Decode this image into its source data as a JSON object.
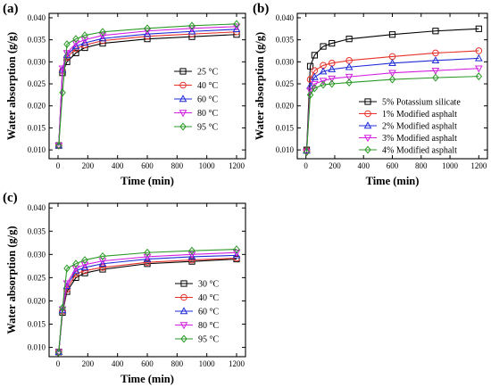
{
  "chart_data": [
    {
      "panel": "(a)",
      "type": "line",
      "xlabel": "Time (min)",
      "ylabel": "Water absorption (g/g)",
      "xlim": [
        -60,
        1260
      ],
      "ylim": [
        0.008,
        0.041
      ],
      "xticks": [
        0,
        200,
        400,
        600,
        800,
        1000,
        1200
      ],
      "yticks": [
        0.01,
        0.015,
        0.02,
        0.025,
        0.03,
        0.035,
        0.04
      ],
      "xticklabels": [
        "0",
        "200",
        "400",
        "600",
        "800",
        "1000",
        "1200"
      ],
      "yticklabels": [
        "0.010",
        "0.015",
        "0.020",
        "0.025",
        "0.030",
        "0.035",
        "0.040"
      ],
      "legend_position": "middle-right",
      "x": [
        5,
        30,
        60,
        120,
        180,
        300,
        600,
        900,
        1200
      ],
      "series": [
        {
          "name": "25 °C",
          "color": "#000000",
          "marker": "square",
          "values": [
            0.011,
            0.0275,
            0.03,
            0.032,
            0.0332,
            0.0342,
            0.0352,
            0.0357,
            0.0362
          ]
        },
        {
          "name": "40 °C",
          "color": "#e8312a",
          "marker": "circle",
          "values": [
            0.011,
            0.028,
            0.031,
            0.033,
            0.0338,
            0.0348,
            0.0358,
            0.0363,
            0.0368
          ]
        },
        {
          "name": "60 °C",
          "color": "#1f2bd6",
          "marker": "triangle-up",
          "values": [
            0.011,
            0.0282,
            0.0315,
            0.0335,
            0.0343,
            0.0353,
            0.0363,
            0.0369,
            0.0374
          ]
        },
        {
          "name": "80 °C",
          "color": "#d21fe0",
          "marker": "triangle-down",
          "values": [
            0.011,
            0.0285,
            0.032,
            0.0342,
            0.035,
            0.036,
            0.037,
            0.0376,
            0.038
          ]
        },
        {
          "name": "95 °C",
          "color": "#2b9a27",
          "marker": "diamond",
          "values": [
            0.011,
            0.023,
            0.034,
            0.0352,
            0.036,
            0.0368,
            0.0376,
            0.0382,
            0.0386
          ]
        }
      ]
    },
    {
      "panel": "(b)",
      "type": "line",
      "xlabel": "Time (min)",
      "ylabel": "Water absorption (g/g)",
      "xlim": [
        -60,
        1260
      ],
      "ylim": [
        0.008,
        0.041
      ],
      "xticks": [
        0,
        200,
        400,
        600,
        800,
        1000,
        1200
      ],
      "yticks": [
        0.01,
        0.015,
        0.02,
        0.025,
        0.03,
        0.035,
        0.04
      ],
      "xticklabels": [
        "0",
        "200",
        "400",
        "600",
        "800",
        "1000",
        "1200"
      ],
      "yticklabels": [
        "0.010",
        "0.015",
        "0.020",
        "0.025",
        "0.030",
        "0.035",
        "0.040"
      ],
      "legend_position": "bottom-right",
      "x": [
        5,
        30,
        60,
        120,
        180,
        300,
        600,
        900,
        1200
      ],
      "series": [
        {
          "name": "5% Potassium silicate",
          "color": "#000000",
          "marker": "square",
          "values": [
            0.01,
            0.029,
            0.0315,
            0.0335,
            0.0342,
            0.0352,
            0.0362,
            0.037,
            0.0375
          ]
        },
        {
          "name": "1% Modified asphalt",
          "color": "#e8312a",
          "marker": "circle",
          "values": [
            0.0098,
            0.026,
            0.028,
            0.0292,
            0.0297,
            0.0303,
            0.0312,
            0.032,
            0.0325
          ]
        },
        {
          "name": "2% Modified asphalt",
          "color": "#1f2bd6",
          "marker": "triangle-up",
          "values": [
            0.0098,
            0.0245,
            0.0265,
            0.0278,
            0.0283,
            0.0288,
            0.0297,
            0.0303,
            0.0308
          ]
        },
        {
          "name": "3% Modified asphalt",
          "color": "#d21fe0",
          "marker": "triangle-down",
          "values": [
            0.0095,
            0.0235,
            0.025,
            0.0257,
            0.0262,
            0.0266,
            0.0275,
            0.028,
            0.0285
          ]
        },
        {
          "name": "4% Modified asphalt",
          "color": "#2b9a27",
          "marker": "diamond",
          "values": [
            0.0095,
            0.0225,
            0.024,
            0.0248,
            0.025,
            0.0253,
            0.026,
            0.0264,
            0.0267
          ]
        }
      ]
    },
    {
      "panel": "(c)",
      "type": "line",
      "xlabel": "Time (min)",
      "ylabel": "Water absorption (g/g)",
      "xlim": [
        -60,
        1260
      ],
      "ylim": [
        0.008,
        0.041
      ],
      "xticks": [
        0,
        200,
        400,
        600,
        800,
        1000,
        1200
      ],
      "yticks": [
        0.01,
        0.015,
        0.02,
        0.025,
        0.03,
        0.035,
        0.04
      ],
      "xticklabels": [
        "0",
        "200",
        "400",
        "600",
        "800",
        "1000",
        "1200"
      ],
      "yticklabels": [
        "0.010",
        "0.015",
        "0.020",
        "0.025",
        "0.030",
        "0.035",
        "0.040"
      ],
      "legend_position": "bottom-right",
      "x": [
        5,
        30,
        60,
        120,
        180,
        300,
        600,
        900,
        1200
      ],
      "series": [
        {
          "name": "30 °C",
          "color": "#000000",
          "marker": "square",
          "values": [
            0.009,
            0.0175,
            0.022,
            0.025,
            0.026,
            0.0268,
            0.028,
            0.0285,
            0.029
          ]
        },
        {
          "name": "40 °C",
          "color": "#e8312a",
          "marker": "circle",
          "values": [
            0.009,
            0.0178,
            0.0225,
            0.0258,
            0.0265,
            0.0272,
            0.0283,
            0.0288,
            0.0292
          ]
        },
        {
          "name": "60 °C",
          "color": "#1f2bd6",
          "marker": "triangle-up",
          "values": [
            0.009,
            0.018,
            0.0232,
            0.0265,
            0.0272,
            0.028,
            0.029,
            0.0295,
            0.0298
          ]
        },
        {
          "name": "80 °C",
          "color": "#d21fe0",
          "marker": "triangle-down",
          "values": [
            0.009,
            0.0182,
            0.0238,
            0.027,
            0.0278,
            0.0286,
            0.0295,
            0.03,
            0.0304
          ]
        },
        {
          "name": "95 °C",
          "color": "#2b9a27",
          "marker": "diamond",
          "values": [
            0.009,
            0.0185,
            0.027,
            0.028,
            0.0288,
            0.0296,
            0.0304,
            0.0308,
            0.0311
          ]
        }
      ]
    }
  ]
}
